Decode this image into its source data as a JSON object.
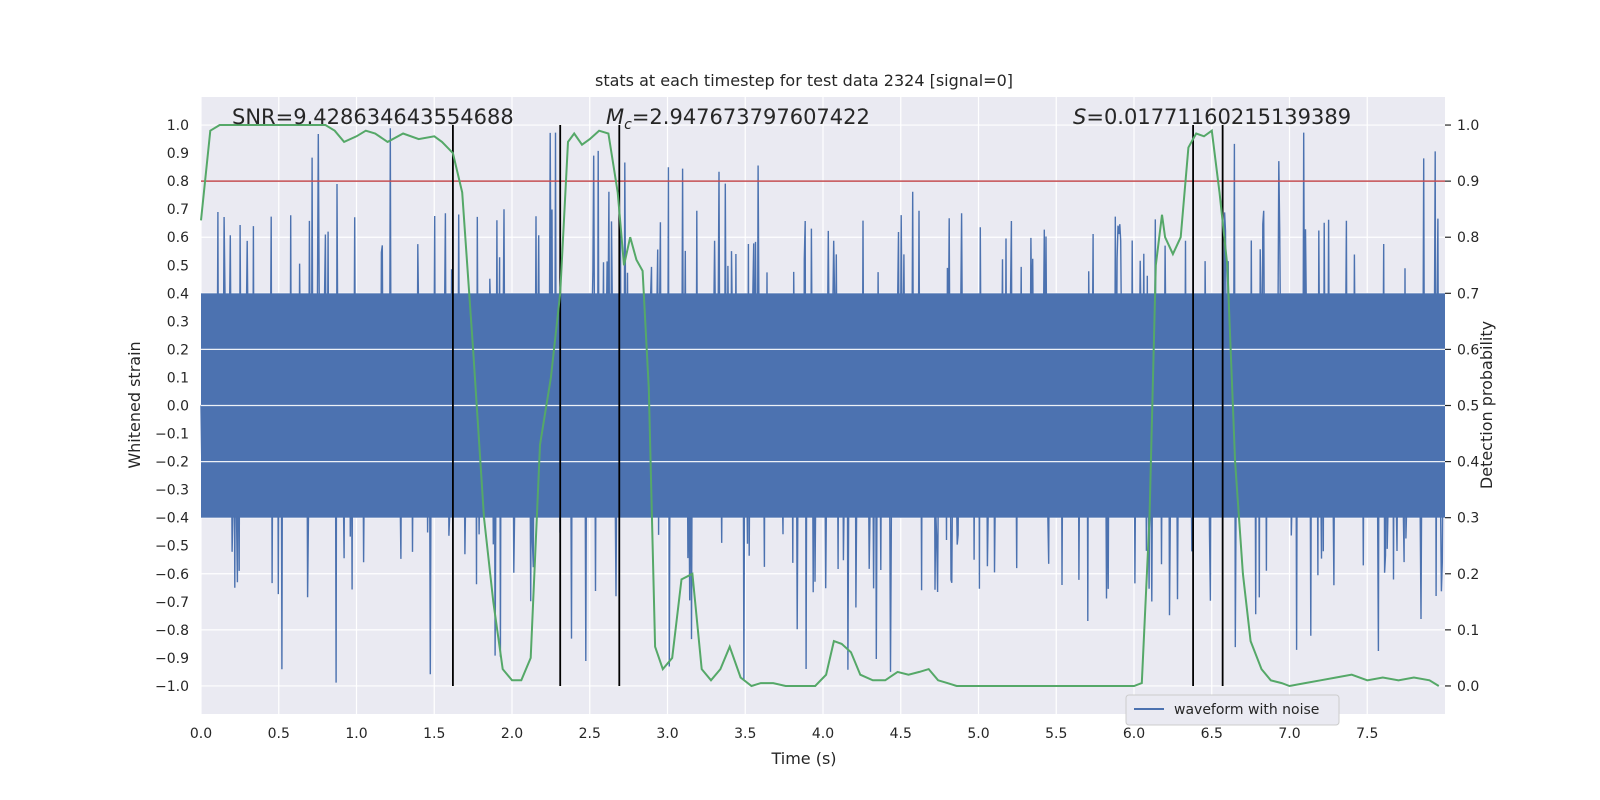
{
  "chart_data": {
    "type": "line",
    "title": "stats at each timestep for test data 2324 [signal=0]",
    "xlabel": "Time (s)",
    "ylabel": "Whitened strain",
    "y2label": "Detection probability",
    "xlim": [
      0.0,
      8.0
    ],
    "ylim": [
      -1.1,
      1.1
    ],
    "y2lim": [
      -0.05,
      1.05
    ],
    "x_ticks": [
      "0.0",
      "0.5",
      "1.0",
      "1.5",
      "2.0",
      "2.5",
      "3.0",
      "3.5",
      "4.0",
      "4.5",
      "5.0",
      "5.5",
      "6.0",
      "6.5",
      "7.0",
      "7.5"
    ],
    "y_ticks": [
      "1.0",
      "0.9",
      "0.8",
      "0.7",
      "0.6",
      "0.5",
      "0.4",
      "0.3",
      "0.2",
      "0.1",
      "0.0",
      "−0.1",
      "−0.2",
      "−0.3",
      "−0.4",
      "−0.5",
      "−0.6",
      "−0.7",
      "−0.8",
      "−0.9",
      "−1.0"
    ],
    "y2_ticks": [
      "1.0",
      "0.9",
      "0.8",
      "0.7",
      "0.6",
      "0.5",
      "0.4",
      "0.3",
      "0.2",
      "0.1",
      "0.0"
    ],
    "grid": true,
    "legend": {
      "label": "waveform with noise",
      "placement": "bottom-right"
    },
    "annotations": {
      "snr": "SNR=9.428634643554688",
      "mc_symbol": "M",
      "mc_subscript": "c",
      "mc_value": "=2.947673797607422",
      "s_symbol": "S",
      "s_value": "=0.01771160215139389"
    },
    "threshold": {
      "value_y2": 0.9,
      "color": "#c44e52"
    },
    "vertical_lines_x": [
      1.62,
      2.31,
      2.69,
      6.38,
      6.57
    ],
    "waveform": {
      "name": "waveform with noise",
      "color": "#4c72b0",
      "sample_count": 1400,
      "dense_band": [
        -0.4,
        0.4
      ],
      "typical_peak_range": [
        0.45,
        0.7
      ],
      "max_abs": 0.99
    },
    "series": [
      {
        "name": "detection probability",
        "color": "#55a868",
        "x": [
          0.0,
          0.06,
          0.12,
          0.2,
          0.3,
          0.4,
          0.5,
          0.6,
          0.7,
          0.8,
          0.86,
          0.92,
          1.0,
          1.06,
          1.12,
          1.2,
          1.3,
          1.4,
          1.5,
          1.55,
          1.62,
          1.68,
          1.75,
          1.82,
          1.88,
          1.94,
          2.0,
          2.06,
          2.12,
          2.18,
          2.25,
          2.31,
          2.36,
          2.4,
          2.45,
          2.5,
          2.56,
          2.62,
          2.68,
          2.72,
          2.76,
          2.8,
          2.84,
          2.88,
          2.92,
          2.97,
          3.03,
          3.09,
          3.16,
          3.22,
          3.28,
          3.34,
          3.4,
          3.47,
          3.54,
          3.6,
          3.68,
          3.76,
          3.85,
          3.95,
          4.02,
          4.07,
          4.12,
          4.18,
          4.24,
          4.32,
          4.4,
          4.48,
          4.55,
          4.62,
          4.68,
          4.74,
          4.8,
          4.86,
          4.92,
          5.0,
          5.1,
          5.2,
          5.3,
          5.4,
          5.5,
          5.6,
          5.7,
          5.8,
          5.9,
          6.0,
          6.05,
          6.1,
          6.14,
          6.18,
          6.2,
          6.25,
          6.3,
          6.35,
          6.4,
          6.45,
          6.5,
          6.55,
          6.6,
          6.65,
          6.7,
          6.75,
          6.82,
          6.88,
          6.95,
          7.0,
          7.1,
          7.2,
          7.3,
          7.4,
          7.5,
          7.6,
          7.7,
          7.8,
          7.9,
          7.96
        ],
        "values": [
          0.83,
          0.99,
          1.0,
          1.0,
          1.0,
          1.0,
          1.0,
          1.0,
          1.0,
          1.0,
          0.99,
          0.97,
          0.98,
          0.99,
          0.985,
          0.97,
          0.985,
          0.975,
          0.98,
          0.97,
          0.95,
          0.88,
          0.6,
          0.3,
          0.15,
          0.03,
          0.01,
          0.01,
          0.05,
          0.43,
          0.55,
          0.7,
          0.97,
          0.985,
          0.965,
          0.975,
          0.99,
          0.985,
          0.88,
          0.75,
          0.8,
          0.76,
          0.74,
          0.53,
          0.07,
          0.03,
          0.05,
          0.19,
          0.2,
          0.03,
          0.01,
          0.03,
          0.07,
          0.015,
          0.0,
          0.005,
          0.005,
          0.0,
          0.0,
          0.0,
          0.02,
          0.08,
          0.075,
          0.06,
          0.02,
          0.01,
          0.01,
          0.025,
          0.02,
          0.025,
          0.03,
          0.01,
          0.005,
          0.0,
          0.0,
          0.0,
          0.0,
          0.0,
          0.0,
          0.0,
          0.0,
          0.0,
          0.0,
          0.0,
          0.0,
          0.0,
          0.005,
          0.3,
          0.75,
          0.84,
          0.8,
          0.77,
          0.8,
          0.96,
          0.985,
          0.98,
          0.99,
          0.88,
          0.75,
          0.4,
          0.2,
          0.08,
          0.03,
          0.01,
          0.005,
          0.0,
          0.005,
          0.01,
          0.015,
          0.02,
          0.01,
          0.015,
          0.01,
          0.015,
          0.01,
          0.0
        ]
      }
    ]
  }
}
